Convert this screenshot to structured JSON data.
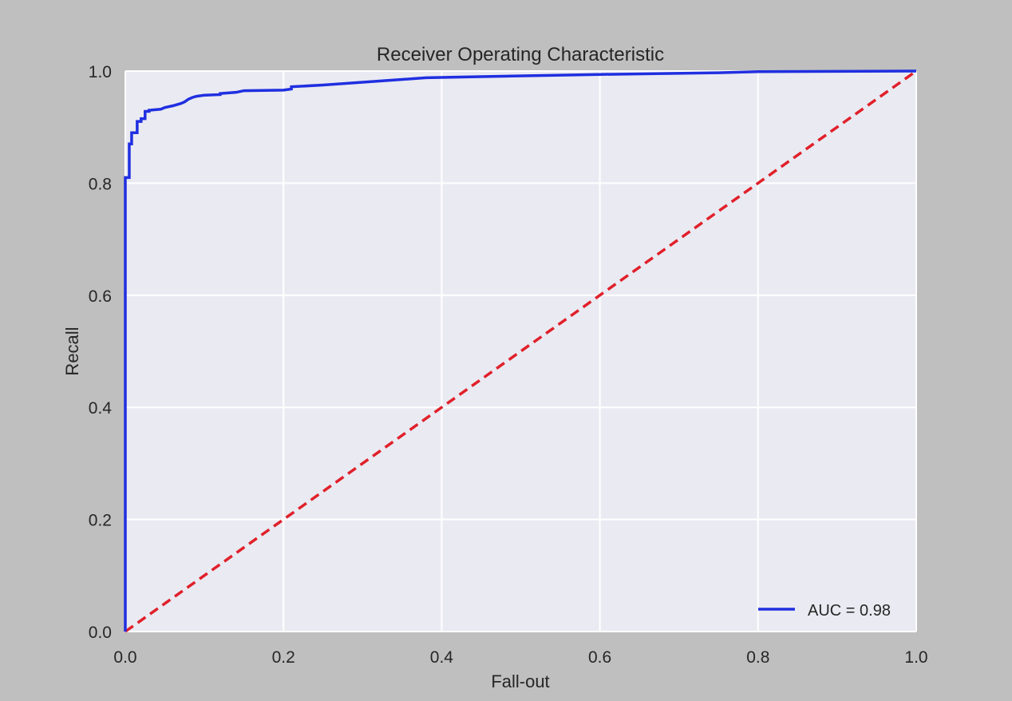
{
  "colors": {
    "figure_background": "#bfbfbf",
    "plot_background": "#eaeaf2",
    "grid": "#ffffff",
    "roc_line": "#1f2fe0",
    "chance_line": "#e0202a",
    "text": "#262626"
  },
  "chart_data": {
    "type": "line",
    "title": "Receiver Operating Characteristic",
    "xlabel": "Fall-out",
    "ylabel": "Recall",
    "xlim": [
      0.0,
      1.0
    ],
    "ylim": [
      0.0,
      1.0
    ],
    "xticks": [
      "0.0",
      "0.2",
      "0.4",
      "0.6",
      "0.8",
      "1.0"
    ],
    "yticks": [
      "0.0",
      "0.2",
      "0.4",
      "0.6",
      "0.8",
      "1.0"
    ],
    "grid": true,
    "legend_position": "lower-right",
    "series": [
      {
        "name": "AUC = 0.98",
        "style": "solid",
        "color": "#1f2fe0",
        "x": [
          0.0,
          0.0,
          0.0,
          0.005,
          0.005,
          0.008,
          0.008,
          0.015,
          0.015,
          0.02,
          0.02,
          0.025,
          0.025,
          0.03,
          0.03,
          0.045,
          0.05,
          0.06,
          0.07,
          0.075,
          0.08,
          0.085,
          0.09,
          0.1,
          0.12,
          0.12,
          0.14,
          0.15,
          0.2,
          0.21,
          0.21,
          0.25,
          0.3,
          0.35,
          0.38,
          0.45,
          0.6,
          0.75,
          0.8,
          1.0
        ],
        "y": [
          0.0,
          0.175,
          0.81,
          0.81,
          0.87,
          0.87,
          0.89,
          0.89,
          0.91,
          0.91,
          0.915,
          0.915,
          0.928,
          0.928,
          0.93,
          0.932,
          0.935,
          0.938,
          0.942,
          0.945,
          0.95,
          0.953,
          0.955,
          0.957,
          0.958,
          0.96,
          0.962,
          0.965,
          0.966,
          0.968,
          0.972,
          0.975,
          0.98,
          0.985,
          0.988,
          0.99,
          0.994,
          0.997,
          0.999,
          1.0
        ]
      },
      {
        "name": "",
        "style": "dashed",
        "color": "#e0202a",
        "x": [
          0.0,
          1.0
        ],
        "y": [
          0.0,
          1.0
        ]
      }
    ],
    "legend": [
      "AUC = 0.98"
    ]
  }
}
